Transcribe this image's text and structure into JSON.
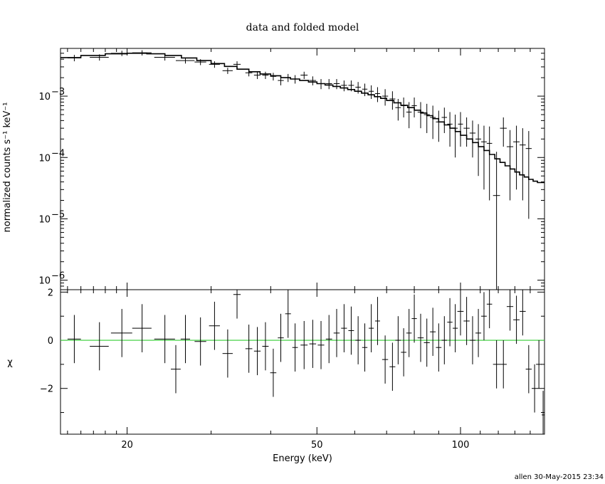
{
  "title": "data and folded model",
  "footer": "allen 30-May-2015 23:34",
  "chart_data": [
    {
      "type": "line",
      "panel": "spectrum",
      "title": "data and folded model",
      "ylabel": "normalized counts s⁻¹ keV⁻¹",
      "xscale": "log",
      "yscale": "log",
      "xlim": [
        14.5,
        150
      ],
      "ylim": [
        7e-07,
        0.006
      ],
      "x_ticks": [
        20,
        50,
        100
      ],
      "y_ticks": [
        {
          "value": 1e-06,
          "label": "10",
          "exp": "−6"
        },
        {
          "value": 1e-05,
          "label": "10",
          "exp": "−5"
        },
        {
          "value": 0.0001,
          "label": "10",
          "exp": "−4"
        },
        {
          "value": 0.001,
          "label": "10",
          "exp": "−3"
        }
      ],
      "series": [
        {
          "role": "data",
          "points": [
            [
              15.5,
              0.0042,
              0.5,
              0.0005
            ],
            [
              17.5,
              0.0043,
              0.8,
              0.0005
            ],
            [
              19.5,
              0.005,
              1.0,
              0.0005
            ],
            [
              21.5,
              0.0051,
              1.0,
              0.0005
            ],
            [
              24.0,
              0.0043,
              1.2,
              0.0005
            ],
            [
              26.5,
              0.0038,
              1.2,
              0.0004
            ],
            [
              28.5,
              0.0036,
              0.8,
              0.0004
            ],
            [
              30.5,
              0.0033,
              0.8,
              0.0004
            ],
            [
              32.5,
              0.0026,
              0.8,
              0.0003
            ],
            [
              34.0,
              0.0033,
              0.6,
              0.0004
            ],
            [
              36.0,
              0.0024,
              0.6,
              0.0003
            ],
            [
              37.5,
              0.0022,
              0.6,
              0.0003
            ],
            [
              39.0,
              0.0022,
              0.6,
              0.0003
            ],
            [
              40.5,
              0.0021,
              0.6,
              0.0003
            ],
            [
              42.0,
              0.0018,
              0.6,
              0.0003
            ],
            [
              43.5,
              0.002,
              0.6,
              0.0003
            ],
            [
              45.0,
              0.0019,
              0.6,
              0.0003
            ],
            [
              47.0,
              0.0022,
              0.8,
              0.0003
            ],
            [
              49.0,
              0.0018,
              0.8,
              0.0003
            ],
            [
              51.0,
              0.0016,
              0.8,
              0.0003
            ],
            [
              53.0,
              0.0016,
              0.8,
              0.0003
            ],
            [
              55.0,
              0.0016,
              0.8,
              0.0003
            ],
            [
              57.0,
              0.0015,
              0.8,
              0.0003
            ],
            [
              59.0,
              0.0015,
              0.8,
              0.0003
            ],
            [
              61.0,
              0.0014,
              0.8,
              0.0003
            ],
            [
              63.0,
              0.0013,
              0.8,
              0.0003
            ],
            [
              65.0,
              0.0012,
              0.8,
              0.0003
            ],
            [
              67.0,
              0.0011,
              0.8,
              0.0003
            ],
            [
              69.5,
              0.001,
              1.0,
              0.0003
            ],
            [
              72.0,
              0.0009,
              1.0,
              0.0003
            ],
            [
              74.0,
              0.00065,
              1.0,
              0.00025
            ],
            [
              76.0,
              0.0007,
              1.0,
              0.00025
            ],
            [
              78.0,
              0.00055,
              1.0,
              0.00025
            ],
            [
              80.0,
              0.0007,
              1.0,
              0.00025
            ],
            [
              82.5,
              0.00055,
              1.2,
              0.00025
            ],
            [
              85.0,
              0.0005,
              1.2,
              0.00025
            ],
            [
              87.5,
              0.00045,
              1.2,
              0.00025
            ],
            [
              90.0,
              0.00038,
              1.2,
              0.0002
            ],
            [
              92.5,
              0.00045,
              1.2,
              0.0002
            ],
            [
              95.0,
              0.00035,
              1.2,
              0.0002
            ],
            [
              97.5,
              0.0003,
              1.2,
              0.0002
            ],
            [
              100.0,
              0.00035,
              1.2,
              0.0002
            ],
            [
              103.0,
              0.0003,
              1.5,
              0.00015
            ],
            [
              106.0,
              0.00025,
              1.5,
              0.00015
            ],
            [
              109.0,
              0.0002,
              1.5,
              0.00015
            ],
            [
              112.0,
              0.00018,
              1.5,
              0.00015
            ],
            [
              115.0,
              0.00017,
              1.5,
              0.00015
            ],
            [
              119.0,
              2.4e-05,
              2.0,
              0.0001
            ],
            [
              123.0,
              0.0003,
              2.0,
              0.00015
            ],
            [
              127.0,
              0.00015,
              2.0,
              0.00013
            ],
            [
              131.0,
              0.00018,
              2.0,
              0.00015
            ],
            [
              135.0,
              0.00016,
              2.0,
              0.00014
            ],
            [
              139.0,
              0.00014,
              2.0,
              0.00013
            ]
          ]
        },
        {
          "role": "model",
          "steps": [
            [
              14.5,
              0.00425
            ],
            [
              16.0,
              0.0046
            ],
            [
              18.0,
              0.0049
            ],
            [
              20.0,
              0.005
            ],
            [
              22.0,
              0.0049
            ],
            [
              24.0,
              0.0046
            ],
            [
              26.0,
              0.0042
            ],
            [
              28.0,
              0.0038
            ],
            [
              30.0,
              0.0034
            ],
            [
              32.0,
              0.00305
            ],
            [
              34.0,
              0.00275
            ],
            [
              36.0,
              0.0025
            ],
            [
              38.0,
              0.0023
            ],
            [
              40.0,
              0.00215
            ],
            [
              42.0,
              0.002
            ],
            [
              44.0,
              0.0019
            ],
            [
              46.0,
              0.0018
            ],
            [
              48.0,
              0.0017
            ],
            [
              50.0,
              0.0016
            ],
            [
              52.0,
              0.00152
            ],
            [
              54.0,
              0.00144
            ],
            [
              56.0,
              0.00136
            ],
            [
              58.0,
              0.00128
            ],
            [
              60.0,
              0.0012
            ],
            [
              62.0,
              0.00112
            ],
            [
              64.0,
              0.00105
            ],
            [
              66.0,
              0.00098
            ],
            [
              68.0,
              0.00092
            ],
            [
              70.0,
              0.00085
            ],
            [
              72.5,
              0.00078
            ],
            [
              75.0,
              0.00071
            ],
            [
              77.5,
              0.00065
            ],
            [
              80.0,
              0.00059
            ],
            [
              82.5,
              0.00053
            ],
            [
              85.0,
              0.00048
            ],
            [
              87.5,
              0.00043
            ],
            [
              90.0,
              0.00038
            ],
            [
              92.5,
              0.00034
            ],
            [
              95.0,
              0.0003
            ],
            [
              97.5,
              0.000265
            ],
            [
              100.0,
              0.00023
            ],
            [
              103.0,
              0.0002
            ],
            [
              106.0,
              0.000175
            ],
            [
              109.0,
              0.00015
            ],
            [
              112.0,
              0.00013
            ],
            [
              115.0,
              0.000112
            ],
            [
              118.0,
              9.5e-05
            ],
            [
              121.0,
              8.3e-05
            ],
            [
              124.0,
              7.3e-05
            ],
            [
              127.0,
              6.5e-05
            ],
            [
              130.0,
              5.8e-05
            ],
            [
              133.0,
              5.2e-05
            ],
            [
              136.0,
              4.8e-05
            ],
            [
              139.0,
              4.4e-05
            ],
            [
              142.0,
              4.1e-05
            ],
            [
              145.0,
              3.9e-05
            ],
            [
              150.0,
              3.9e-05
            ]
          ]
        }
      ]
    },
    {
      "type": "scatter",
      "panel": "residuals",
      "xlabel": "Energy (keV)",
      "ylabel": "χ",
      "xscale": "log",
      "xlim": [
        14.5,
        150
      ],
      "ylim": [
        -3.9,
        2.1
      ],
      "x_ticks": [
        20,
        50,
        100
      ],
      "y_ticks": [
        {
          "value": 2,
          "label": "2"
        },
        {
          "value": 0,
          "label": "0"
        },
        {
          "value": -2,
          "label": "−2"
        }
      ],
      "zero_line_color": "#33cc33",
      "series": [
        {
          "role": "residual",
          "points": [
            [
              15.5,
              0.05,
              0.5,
              1.0
            ],
            [
              17.5,
              -0.25,
              0.8,
              1.0
            ],
            [
              19.5,
              0.3,
              1.0,
              1.0
            ],
            [
              21.5,
              0.5,
              1.0,
              1.0
            ],
            [
              24.0,
              0.05,
              1.2,
              1.0
            ],
            [
              25.3,
              -1.2,
              0.6,
              1.0
            ],
            [
              26.5,
              0.05,
              0.6,
              1.0
            ],
            [
              28.5,
              -0.05,
              0.8,
              1.0
            ],
            [
              30.5,
              0.6,
              0.8,
              1.0
            ],
            [
              32.5,
              -0.55,
              0.8,
              1.0
            ],
            [
              34.0,
              1.9,
              0.6,
              1.0
            ],
            [
              36.0,
              -0.35,
              0.6,
              1.0
            ],
            [
              37.5,
              -0.45,
              0.6,
              1.0
            ],
            [
              39.0,
              -0.25,
              0.6,
              1.0
            ],
            [
              40.5,
              -1.35,
              0.6,
              1.0
            ],
            [
              42.0,
              0.1,
              0.6,
              1.0
            ],
            [
              43.5,
              1.1,
              0.6,
              1.0
            ],
            [
              45.0,
              -0.3,
              0.6,
              1.0
            ],
            [
              47.0,
              -0.2,
              0.8,
              1.0
            ],
            [
              49.0,
              -0.15,
              0.8,
              1.0
            ],
            [
              51.0,
              -0.2,
              0.8,
              1.0
            ],
            [
              53.0,
              0.05,
              0.8,
              1.0
            ],
            [
              55.0,
              0.3,
              0.8,
              1.0
            ],
            [
              57.0,
              0.5,
              0.8,
              1.0
            ],
            [
              59.0,
              0.4,
              0.8,
              1.0
            ],
            [
              61.0,
              0.0,
              0.8,
              1.0
            ],
            [
              63.0,
              -0.3,
              0.8,
              1.0
            ],
            [
              65.0,
              0.5,
              0.8,
              1.0
            ],
            [
              67.0,
              0.8,
              0.8,
              1.0
            ],
            [
              69.5,
              -0.8,
              1.0,
              1.0
            ],
            [
              72.0,
              -1.1,
              1.0,
              1.0
            ],
            [
              74.0,
              0.0,
              1.0,
              1.0
            ],
            [
              76.0,
              -0.5,
              1.0,
              1.0
            ],
            [
              78.0,
              0.3,
              1.0,
              1.0
            ],
            [
              80.0,
              0.9,
              1.0,
              1.0
            ],
            [
              82.5,
              0.1,
              1.2,
              1.0
            ],
            [
              85.0,
              -0.1,
              1.2,
              1.0
            ],
            [
              87.5,
              0.35,
              1.2,
              1.0
            ],
            [
              90.0,
              -0.3,
              1.2,
              1.0
            ],
            [
              92.5,
              0.0,
              1.2,
              1.0
            ],
            [
              95.0,
              0.75,
              1.2,
              1.0
            ],
            [
              97.5,
              0.5,
              1.2,
              1.0
            ],
            [
              100.0,
              1.2,
              1.5,
              1.0
            ],
            [
              103.0,
              0.8,
              1.5,
              1.0
            ],
            [
              106.0,
              0.0,
              1.5,
              1.0
            ],
            [
              109.0,
              0.3,
              1.5,
              1.0
            ],
            [
              112.0,
              1.0,
              1.5,
              1.0
            ],
            [
              115.0,
              1.5,
              1.5,
              1.0
            ],
            [
              119.0,
              -1.0,
              2.0,
              1.0
            ],
            [
              123.0,
              -1.0,
              2.0,
              1.0
            ],
            [
              127.0,
              1.4,
              2.0,
              1.0
            ],
            [
              131.0,
              0.85,
              2.0,
              1.0
            ],
            [
              135.0,
              1.2,
              2.0,
              1.0
            ],
            [
              139.0,
              -1.2,
              2.0,
              1.0
            ],
            [
              143.0,
              -2.0,
              2.0,
              1.0
            ],
            [
              146.0,
              -1.0,
              2.0,
              1.0
            ],
            [
              149.0,
              -3.1,
              1.0,
              1.0
            ]
          ]
        }
      ]
    }
  ]
}
